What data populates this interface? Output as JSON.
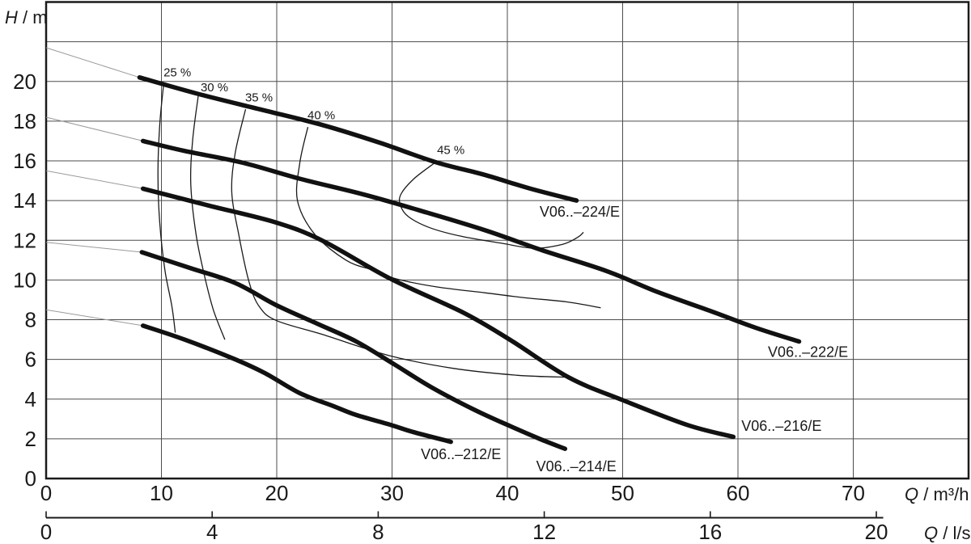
{
  "page": {
    "background": "#ffffff"
  },
  "colors": {
    "ink": "#1a1a1a",
    "grid": "#4d4d4d",
    "curve": "#111111",
    "contour": "#1a1a1a",
    "extension": "#9a9a9a"
  },
  "chart_data": {
    "type": "line",
    "title": "",
    "xlabel": "Q / m³/h",
    "xlabel2": "Q / l/s",
    "ylabel": "H / m",
    "grid": true,
    "x_axis": {
      "symbol": "Q",
      "separator": " / ",
      "unit": "m³/h",
      "range": [
        0,
        80
      ],
      "tick_values": [
        0,
        10,
        20,
        30,
        40,
        50,
        60,
        70
      ],
      "tick_labels": [
        "0",
        "10",
        "20",
        "30",
        "40",
        "50",
        "60",
        "70"
      ]
    },
    "x_axis2": {
      "symbol": "Q",
      "separator": " / ",
      "unit": "l/s",
      "unit_to_m3h": 3.6,
      "tick_values": [
        0,
        4,
        8,
        12,
        16,
        20
      ],
      "tick_labels": [
        "0",
        "4",
        "8",
        "12",
        "16",
        "20"
      ],
      "axis_end_m3h": 72.6
    },
    "y_axis": {
      "symbol": "H",
      "separator": " / ",
      "unit": "m",
      "range": [
        0,
        24
      ],
      "grid_step": 2,
      "tick_values": [
        0,
        2,
        4,
        6,
        8,
        10,
        12,
        14,
        16,
        18,
        20
      ],
      "tick_labels": [
        "0",
        "2",
        "4",
        "6",
        "8",
        "10",
        "12",
        "14",
        "16",
        "18",
        "20"
      ]
    },
    "series": [
      {
        "name": "V06..–224/E",
        "id": "224",
        "label_pos": [
          42.8,
          13.2
        ],
        "extension": [
          [
            0,
            21.7
          ],
          [
            8.1,
            20.2
          ]
        ],
        "points": [
          [
            8.1,
            20.2
          ],
          [
            13,
            19.4
          ],
          [
            18.5,
            18.6
          ],
          [
            24,
            17.8
          ],
          [
            29,
            16.9
          ],
          [
            33.7,
            15.95
          ],
          [
            38,
            15.3
          ],
          [
            42,
            14.6
          ],
          [
            46,
            14.0
          ]
        ]
      },
      {
        "name": "V06..–222/E",
        "id": "222",
        "label_pos": [
          62.6,
          6.12
        ],
        "extension": [
          [
            0,
            18.2
          ],
          [
            8.4,
            17.0
          ]
        ],
        "points": [
          [
            8.4,
            17.0
          ],
          [
            12,
            16.5
          ],
          [
            17.1,
            15.9
          ],
          [
            22,
            15.1
          ],
          [
            27.6,
            14.3
          ],
          [
            33,
            13.4
          ],
          [
            38.1,
            12.5
          ],
          [
            43,
            11.5
          ],
          [
            48.6,
            10.45
          ],
          [
            53,
            9.4
          ],
          [
            57.8,
            8.4
          ],
          [
            61.5,
            7.6
          ],
          [
            65.3,
            6.9
          ]
        ]
      },
      {
        "name": "V06..–216/E",
        "id": "216",
        "label_pos": [
          60.3,
          2.4
        ],
        "extension": [
          [
            0,
            15.5
          ],
          [
            8.4,
            14.6
          ]
        ],
        "points": [
          [
            8.4,
            14.6
          ],
          [
            14.1,
            13.75
          ],
          [
            19.9,
            12.9
          ],
          [
            23.9,
            12.0
          ],
          [
            29.9,
            10.05
          ],
          [
            36.2,
            8.35
          ],
          [
            40.2,
            7.0
          ],
          [
            45.3,
            5.1
          ],
          [
            50,
            3.95
          ],
          [
            55.6,
            2.7
          ],
          [
            59.6,
            2.1
          ]
        ]
      },
      {
        "name": "V06..–214/E",
        "id": "214",
        "label_pos": [
          42.5,
          0.37
        ],
        "extension": [
          [
            0,
            11.9
          ],
          [
            8.3,
            11.4
          ]
        ],
        "points": [
          [
            8.3,
            11.4
          ],
          [
            12.5,
            10.6
          ],
          [
            16.4,
            9.85
          ],
          [
            19.9,
            8.75
          ],
          [
            23.5,
            7.8
          ],
          [
            26.9,
            6.9
          ],
          [
            30.2,
            5.75
          ],
          [
            33.4,
            4.6
          ],
          [
            37,
            3.5
          ],
          [
            40.2,
            2.65
          ],
          [
            42.8,
            2.0
          ],
          [
            45,
            1.5
          ]
        ]
      },
      {
        "name": "V06..–212/E",
        "id": "212",
        "label_pos": [
          32.5,
          0.98
        ],
        "extension": [
          [
            0,
            8.5
          ],
          [
            8.4,
            7.7
          ]
        ],
        "points": [
          [
            8.4,
            7.7
          ],
          [
            12,
            7.0
          ],
          [
            16.4,
            6.0
          ],
          [
            19,
            5.3
          ],
          [
            22,
            4.3
          ],
          [
            24.9,
            3.65
          ],
          [
            26.9,
            3.2
          ],
          [
            29.9,
            2.7
          ],
          [
            31.8,
            2.35
          ],
          [
            35.1,
            1.85
          ]
        ]
      }
    ],
    "efficiency_contours": [
      {
        "label": "25 %",
        "efficiency": 25,
        "label_pos": [
          10.18,
          20.25
        ],
        "points": [
          [
            10.2,
            19.9
          ],
          [
            9.85,
            17.8
          ],
          [
            9.7,
            15.3
          ],
          [
            9.85,
            12.9
          ],
          [
            10.3,
            10.5
          ],
          [
            10.9,
            8.7
          ],
          [
            11.2,
            7.35
          ]
        ]
      },
      {
        "label": "30 %",
        "efficiency": 30,
        "label_pos": [
          13.4,
          19.5
        ],
        "points": [
          [
            13.2,
            19.3
          ],
          [
            12.7,
            17.0
          ],
          [
            12.55,
            14.8
          ],
          [
            13.0,
            12.3
          ],
          [
            13.7,
            10.3
          ],
          [
            14.5,
            8.5
          ],
          [
            15.5,
            7.0
          ]
        ]
      },
      {
        "label": "35 %",
        "efficiency": 35,
        "label_pos": [
          17.26,
          19.0
        ],
        "points": [
          [
            17.3,
            18.6
          ],
          [
            16.4,
            16.4
          ],
          [
            16.1,
            14.45
          ],
          [
            16.7,
            12.3
          ],
          [
            17.6,
            9.9
          ],
          [
            18.5,
            8.65
          ],
          [
            20.0,
            7.95
          ],
          [
            24.0,
            7.25
          ],
          [
            29.7,
            6.2
          ],
          [
            35.3,
            5.55
          ],
          [
            40.9,
            5.2
          ],
          [
            45.3,
            5.1
          ]
        ]
      },
      {
        "label": "40 %",
        "efficiency": 40,
        "label_pos": [
          22.67,
          18.1
        ],
        "points": [
          [
            22.7,
            17.7
          ],
          [
            22.0,
            15.9
          ],
          [
            21.8,
            14.0
          ],
          [
            23.3,
            12.3
          ],
          [
            26.0,
            11.0
          ],
          [
            28.3,
            10.5
          ],
          [
            30.4,
            10.05
          ],
          [
            33.9,
            9.65
          ],
          [
            38.1,
            9.35
          ],
          [
            41.6,
            9.1
          ],
          [
            45.1,
            8.9
          ],
          [
            48.1,
            8.6
          ]
        ]
      },
      {
        "label": "45 %",
        "efficiency": 45,
        "label_pos": [
          33.9,
          16.35
        ],
        "points": [
          [
            33.7,
            15.9
          ],
          [
            31.9,
            15.1
          ],
          [
            30.8,
            14.35
          ],
          [
            30.7,
            13.8
          ],
          [
            31.4,
            13.2
          ],
          [
            33.2,
            12.65
          ],
          [
            36.0,
            12.2
          ],
          [
            39.5,
            11.85
          ],
          [
            42.3,
            11.6
          ],
          [
            44.8,
            11.8
          ],
          [
            46.1,
            12.15
          ],
          [
            46.6,
            12.4
          ]
        ]
      }
    ]
  }
}
